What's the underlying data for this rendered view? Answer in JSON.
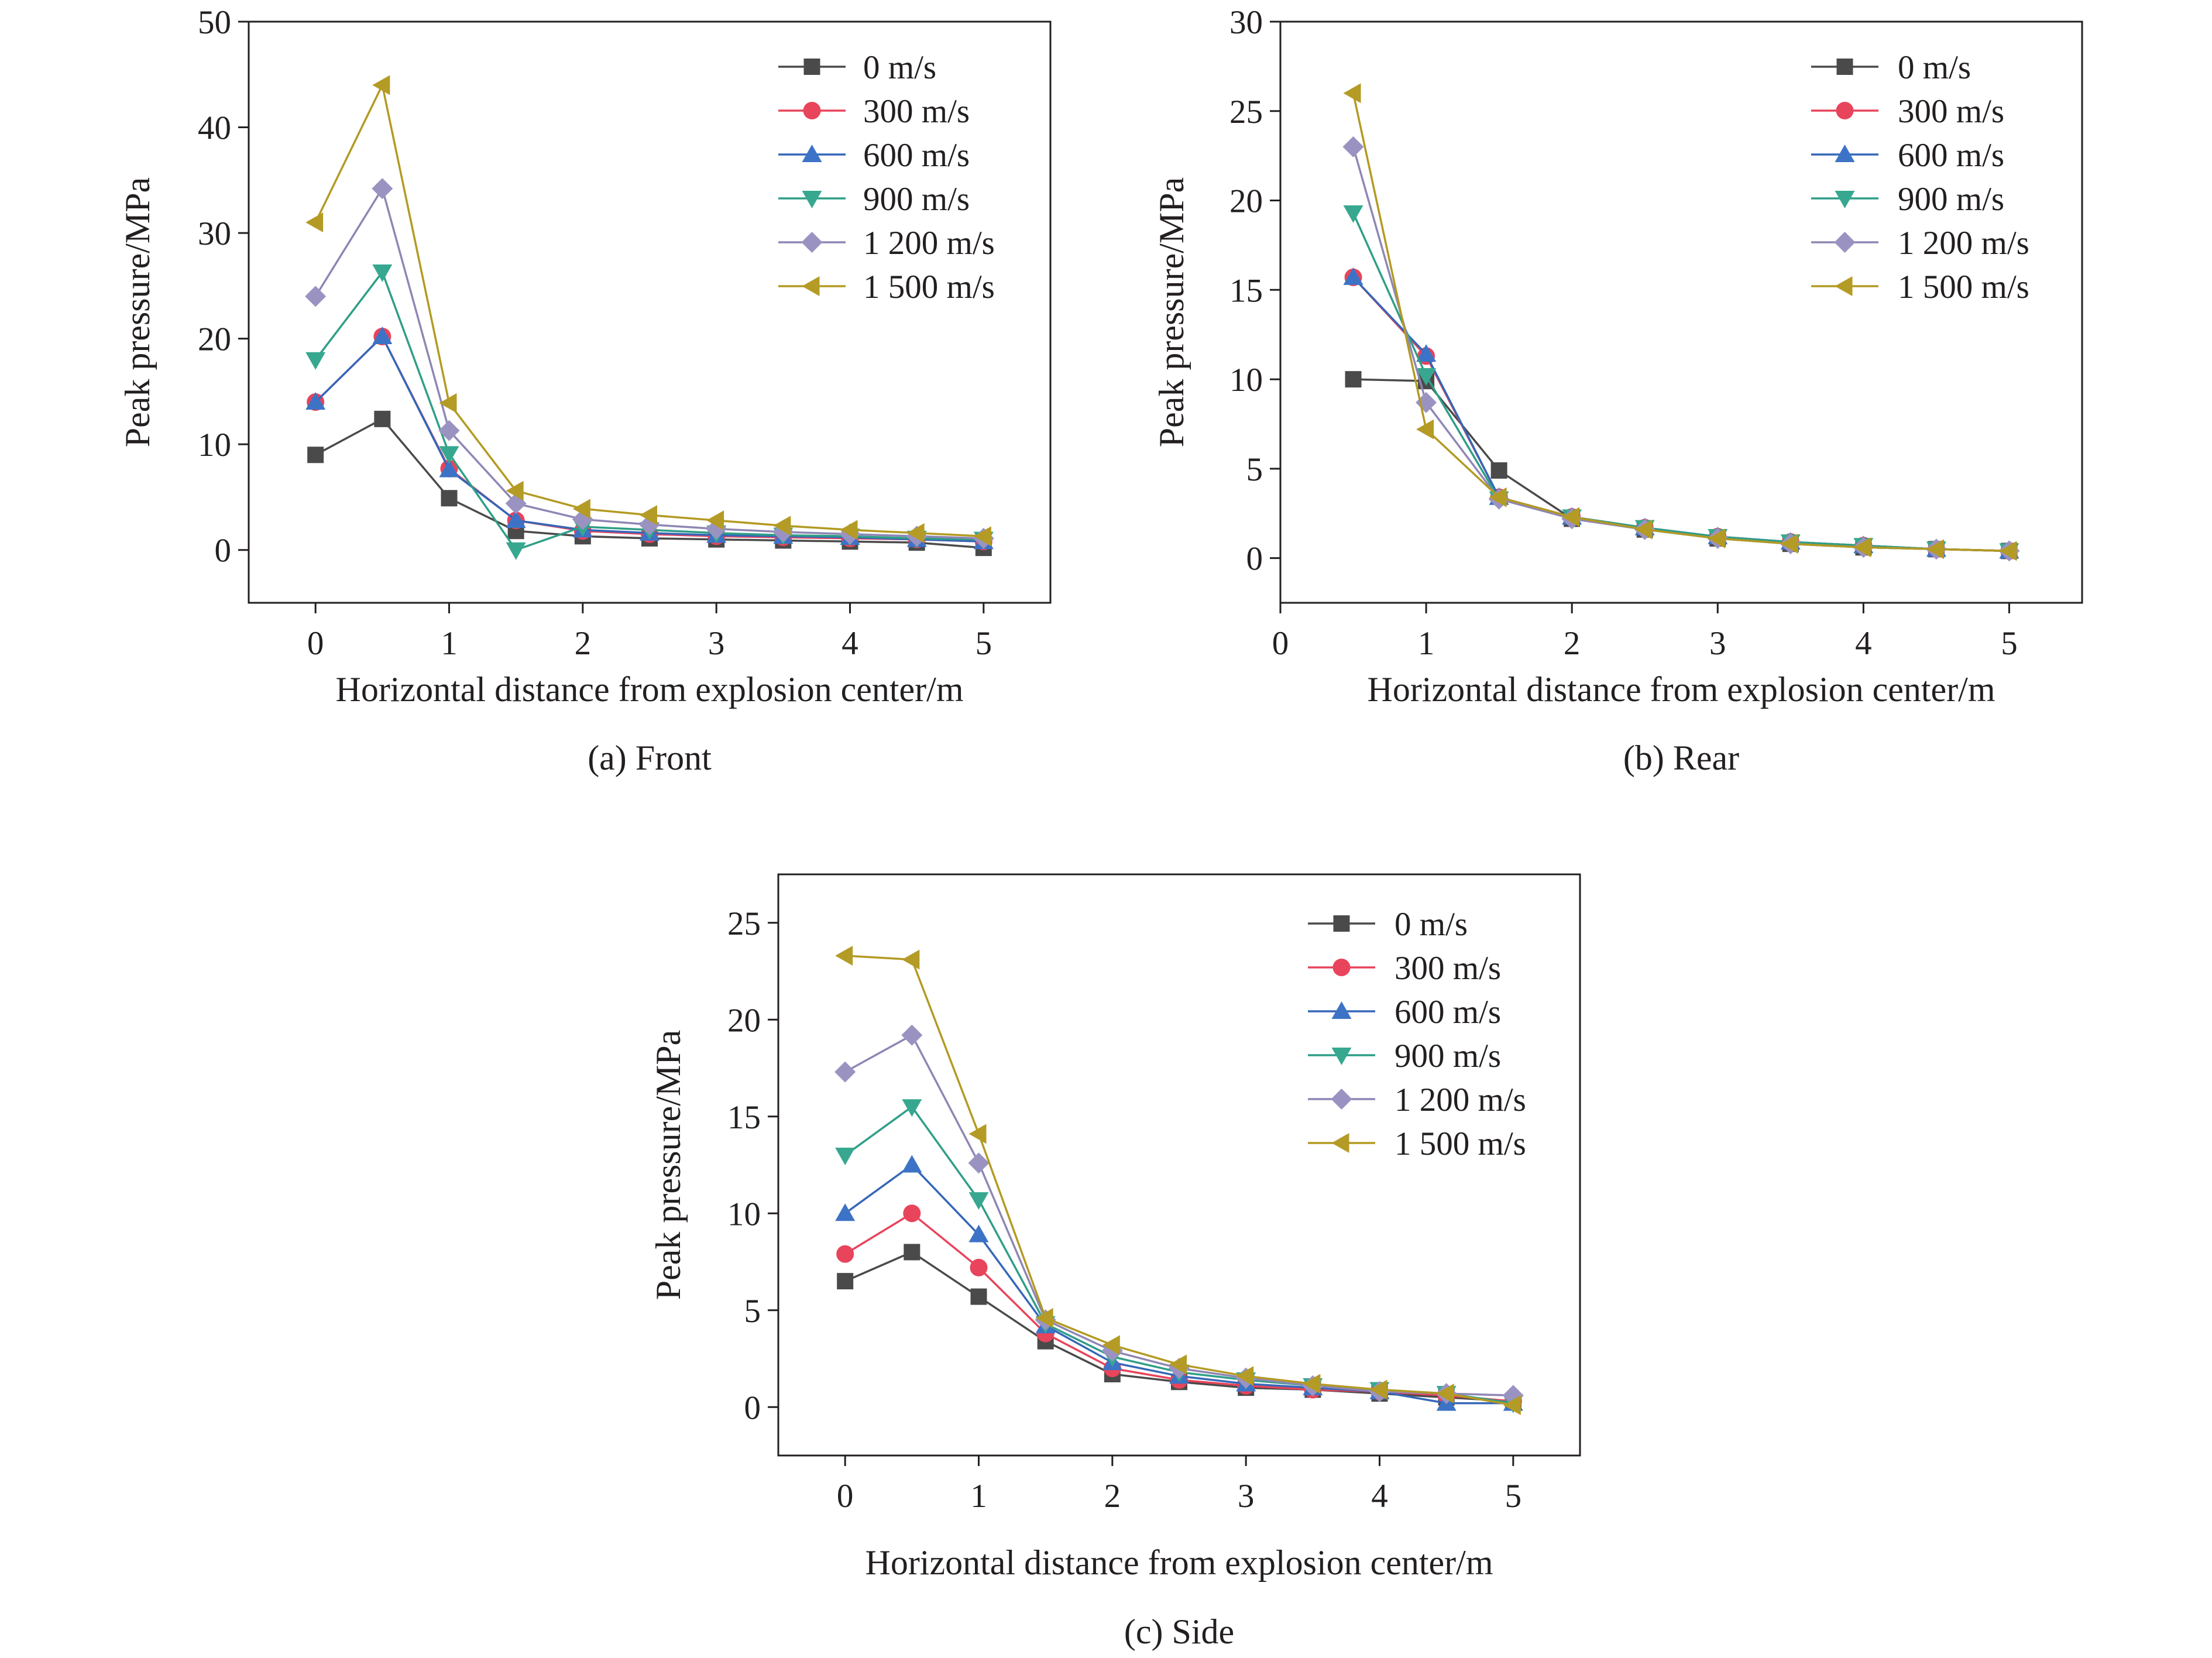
{
  "chart_data": [
    {
      "type": "line",
      "caption": "(a) Front",
      "xlabel": "Horizontal distance from explosion center/m",
      "ylabel": "Peak pressure/MPa",
      "xlim": [
        -0.5,
        5.5
      ],
      "ylim": [
        -5,
        50
      ],
      "xticks": [
        0,
        1,
        2,
        3,
        4,
        5
      ],
      "yticks": [
        0,
        10,
        20,
        30,
        40,
        50
      ],
      "grid": false,
      "legend_position": "top-right",
      "x": [
        0,
        0.5,
        1,
        1.5,
        2,
        2.5,
        3,
        3.5,
        4,
        4.5,
        5
      ],
      "series": [
        {
          "name": "0 m/s",
          "values": [
            9.0,
            12.4,
            4.9,
            1.8,
            1.3,
            1.1,
            1.0,
            0.9,
            0.8,
            0.7,
            0.2
          ]
        },
        {
          "name": "300 m/s",
          "values": [
            14.0,
            20.2,
            7.7,
            2.8,
            1.8,
            1.5,
            1.3,
            1.2,
            1.1,
            1.0,
            0.8
          ]
        },
        {
          "name": "600 m/s",
          "values": [
            14.0,
            20.2,
            7.6,
            2.8,
            1.9,
            1.6,
            1.4,
            1.3,
            1.2,
            1.0,
            0.8
          ]
        },
        {
          "name": "900 m/s",
          "values": [
            18.0,
            26.3,
            9.1,
            0.0,
            2.2,
            1.9,
            1.6,
            1.4,
            1.3,
            1.1,
            1.0
          ]
        },
        {
          "name": "1 200 m/s",
          "values": [
            24.0,
            34.2,
            11.3,
            4.4,
            2.9,
            2.4,
            2.0,
            1.7,
            1.5,
            1.3,
            1.1
          ]
        },
        {
          "name": "1 500 m/s",
          "values": [
            31.0,
            44.0,
            13.9,
            5.6,
            3.9,
            3.3,
            2.8,
            2.3,
            1.9,
            1.6,
            1.3
          ]
        }
      ]
    },
    {
      "type": "line",
      "caption": "(b) Rear",
      "xlabel": "Horizontal distance from explosion center/m",
      "ylabel": "Peak pressure/MPa",
      "xlim": [
        0,
        5.5
      ],
      "ylim": [
        -2.5,
        30
      ],
      "xticks": [
        0,
        1,
        2,
        3,
        4,
        5
      ],
      "yticks": [
        0,
        5,
        10,
        15,
        20,
        25,
        30
      ],
      "grid": false,
      "legend_position": "top-right",
      "x": [
        0.5,
        1,
        1.5,
        2,
        2.5,
        3,
        3.5,
        4,
        4.5,
        5
      ],
      "series": [
        {
          "name": "0 m/s",
          "values": [
            10.0,
            9.9,
            4.9,
            2.2,
            1.6,
            1.1,
            0.8,
            0.6,
            0.5,
            0.4
          ]
        },
        {
          "name": "300 m/s",
          "values": [
            15.7,
            11.3,
            3.4,
            2.3,
            1.7,
            1.2,
            0.9,
            0.7,
            0.5,
            0.4
          ]
        },
        {
          "name": "600 m/s",
          "values": [
            15.7,
            11.4,
            3.4,
            2.3,
            1.7,
            1.2,
            0.9,
            0.7,
            0.5,
            0.4
          ]
        },
        {
          "name": "900 m/s",
          "values": [
            19.3,
            10.2,
            3.3,
            2.3,
            1.7,
            1.2,
            0.9,
            0.7,
            0.5,
            0.4
          ]
        },
        {
          "name": "1 200 m/s",
          "values": [
            23.0,
            8.7,
            3.3,
            2.2,
            1.6,
            1.1,
            0.8,
            0.6,
            0.5,
            0.4
          ]
        },
        {
          "name": "1 500 m/s",
          "values": [
            26.0,
            7.2,
            3.4,
            2.3,
            1.6,
            1.1,
            0.8,
            0.6,
            0.5,
            0.4
          ]
        }
      ]
    },
    {
      "type": "line",
      "caption": "(c) Side",
      "xlabel": "Horizontal distance from explosion center/m",
      "ylabel": "Peak pressure/MPa",
      "xlim": [
        -0.5,
        5.5
      ],
      "ylim": [
        -2.5,
        27.5
      ],
      "xticks": [
        0,
        1,
        2,
        3,
        4,
        5
      ],
      "yticks": [
        0,
        5,
        10,
        15,
        20,
        25
      ],
      "grid": false,
      "legend_position": "top-right",
      "x": [
        0,
        0.5,
        1,
        1.5,
        2,
        2.5,
        3,
        3.5,
        4,
        4.5,
        5
      ],
      "series": [
        {
          "name": "0 m/s",
          "values": [
            6.5,
            8.0,
            5.7,
            3.4,
            1.7,
            1.3,
            1.0,
            0.9,
            0.7,
            0.5,
            0.3
          ]
        },
        {
          "name": "300 m/s",
          "values": [
            7.9,
            10.0,
            7.2,
            3.8,
            2.0,
            1.4,
            1.1,
            0.9,
            0.8,
            0.6,
            0.3
          ]
        },
        {
          "name": "600 m/s",
          "values": [
            10.0,
            12.5,
            8.9,
            4.2,
            2.3,
            1.6,
            1.2,
            1.0,
            0.8,
            0.2,
            0.2
          ]
        },
        {
          "name": "900 m/s",
          "values": [
            13.0,
            15.5,
            10.7,
            4.3,
            2.6,
            1.8,
            1.4,
            1.1,
            0.9,
            0.7,
            0.2
          ]
        },
        {
          "name": "1 200 m/s",
          "values": [
            17.3,
            19.2,
            12.6,
            4.5,
            2.9,
            2.0,
            1.5,
            1.1,
            0.8,
            0.7,
            0.6
          ]
        },
        {
          "name": "1 500 m/s",
          "values": [
            23.3,
            23.1,
            14.1,
            4.6,
            3.2,
            2.2,
            1.6,
            1.2,
            0.9,
            0.7,
            0.1
          ]
        }
      ]
    }
  ],
  "style": {
    "series_colors": [
      "#4a4a4a",
      "#e8445b",
      "#3567b8",
      "#2f9e87",
      "#8e86b4",
      "#b39a22"
    ],
    "marker_fill": [
      "#4a4a4a",
      "#e8445b",
      "#3d73c6",
      "#37a88f",
      "#9a93c2",
      "#b49b25"
    ],
    "markers": [
      "square",
      "circle",
      "triangle-up",
      "triangle-down",
      "diamond",
      "triangle-left"
    ],
    "axis_color": "#231f20"
  }
}
